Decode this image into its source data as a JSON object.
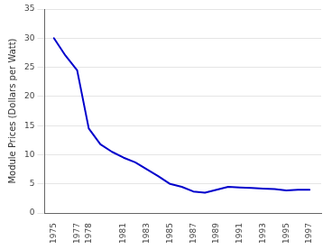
{
  "chart_data": {
    "type": "line",
    "x": [
      1975,
      1976,
      1977,
      1978,
      1979,
      1980,
      1981,
      1982,
      1983,
      1984,
      1985,
      1986,
      1987,
      1988,
      1989,
      1990,
      1991,
      1992,
      1993,
      1994,
      1995,
      1996,
      1997
    ],
    "values": [
      30.0,
      27.0,
      24.5,
      14.5,
      11.8,
      10.5,
      9.5,
      8.7,
      7.5,
      6.3,
      5.0,
      4.5,
      3.7,
      3.5,
      4.0,
      4.5,
      4.4,
      4.3,
      4.2,
      4.1,
      3.9,
      4.0,
      4.0
    ],
    "color": "#0000CC",
    "ylabel": "Module Prices (Dollars per Watt)",
    "xlim": [
      1974.2,
      1998.0
    ],
    "xticks": [
      1975,
      1977,
      1978,
      1981,
      1983,
      1985,
      1987,
      1989,
      1991,
      1993,
      1995,
      1997
    ],
    "ylim": [
      0,
      35
    ],
    "yticks": [
      0,
      5,
      10,
      15,
      20,
      25,
      30,
      35
    ],
    "grid": "y"
  }
}
